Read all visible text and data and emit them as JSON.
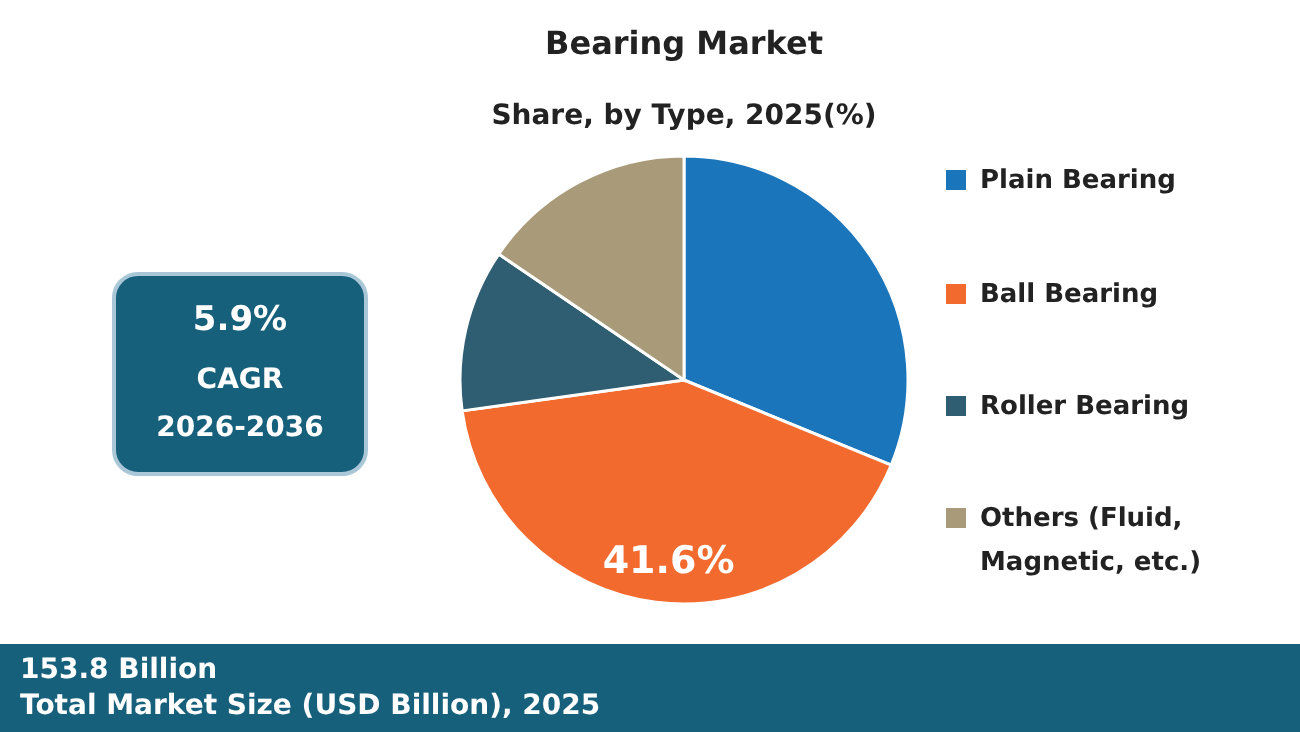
{
  "chart_data": {
    "type": "pie",
    "title": "Bearing Market",
    "subtitle": "Share, by Type, 2025(%)",
    "categories": [
      "Plain Bearing",
      "Ball Bearing",
      "Roller Bearing",
      "Others (Fluid, Magnetic, etc.)"
    ],
    "values": [
      31.2,
      41.6,
      11.7,
      15.5
    ],
    "colors": [
      "#1b75bb",
      "#f26a2e",
      "#2f5d71",
      "#a99a79"
    ],
    "value_labels": [
      null,
      "41.6%",
      null,
      null
    ],
    "legend": "right",
    "annotations": [
      "5.9%",
      "CAGR",
      "2026-2036",
      "153.8 Billion",
      "Total Market Size (USD Billion), 2025"
    ]
  }
}
